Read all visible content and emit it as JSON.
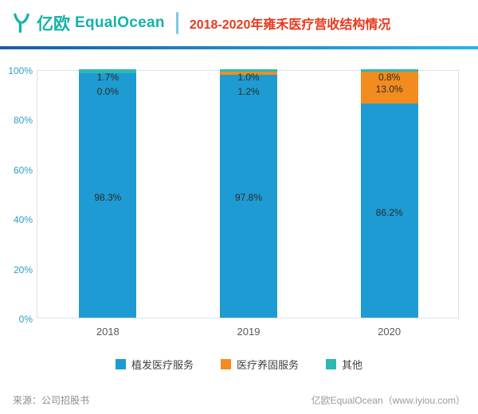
{
  "header": {
    "logo_cn": "亿欧",
    "logo_en": "EqualOcean",
    "title": "2018-2020年雍禾医疗营收结构情况"
  },
  "theme": {
    "title_color": "#e8391e",
    "logo_color": "#14b2aa",
    "axis_label_color": "#2f9fc4",
    "accent_gradient": [
      "#1a5cab",
      "#2bb5e6"
    ]
  },
  "chart_data": {
    "type": "bar",
    "stacked": true,
    "title": "2018-2020年雍禾医疗营收结构情况",
    "categories": [
      "2018",
      "2019",
      "2020"
    ],
    "series": [
      {
        "name": "植发医疗服务",
        "color": "#1e9bd2",
        "values": [
          98.3,
          97.8,
          86.2
        ]
      },
      {
        "name": "医疗养固服务",
        "color": "#f28c1e",
        "values": [
          0.0,
          1.2,
          13.0
        ]
      },
      {
        "name": "其他",
        "color": "#2bb9b3",
        "values": [
          1.7,
          1.0,
          0.8
        ]
      }
    ],
    "ylim": [
      0,
      100
    ],
    "yticks": [
      "0%",
      "20%",
      "40%",
      "60%",
      "80%",
      "100%"
    ],
    "grid": false,
    "legend_position": "bottom",
    "data_labels": true
  },
  "footer": {
    "source": "来源：公司招股书",
    "credit": "亿欧EqualOcean（www.iyiou.com）"
  }
}
